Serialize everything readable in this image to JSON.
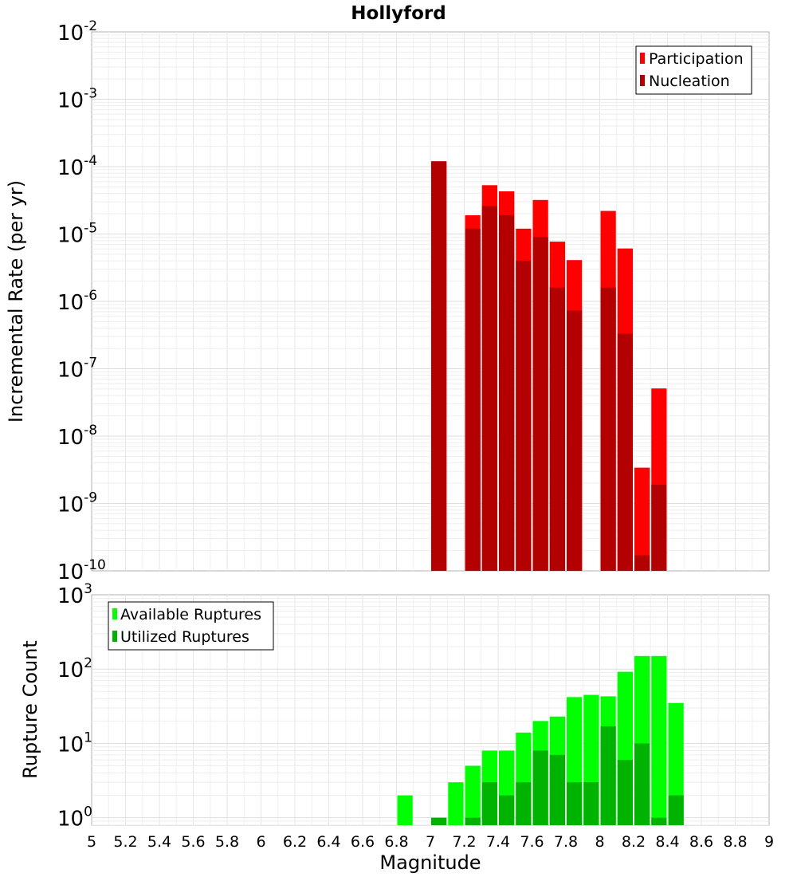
{
  "chart_data": [
    {
      "type": "bar",
      "title": "Hollyford",
      "xlabel": "Magnitude",
      "ylabel": "Incremental Rate (per yr)",
      "yscale": "log",
      "xlim": [
        5,
        9
      ],
      "ylim_exponents": [
        -10,
        -2
      ],
      "ytick_base": "10",
      "ytick_exponents": [
        "-2",
        "-3",
        "-4",
        "-5",
        "-6",
        "-7",
        "-8",
        "-9",
        "-10"
      ],
      "legend_position": "top-right",
      "series": [
        {
          "name": "Participation",
          "color": "#ff0000",
          "points": [
            {
              "x": 7.05,
              "y": 0.00012
            },
            {
              "x": 7.25,
              "y": 1.9e-05
            },
            {
              "x": 7.35,
              "y": 5.3e-05
            },
            {
              "x": 7.45,
              "y": 4.3e-05
            },
            {
              "x": 7.55,
              "y": 1.2e-05
            },
            {
              "x": 7.65,
              "y": 3.2e-05
            },
            {
              "x": 7.75,
              "y": 7.7e-06
            },
            {
              "x": 7.85,
              "y": 4.1e-06
            },
            {
              "x": 8.05,
              "y": 2.2e-05
            },
            {
              "x": 8.15,
              "y": 6.1e-06
            },
            {
              "x": 8.25,
              "y": 3.4e-09
            },
            {
              "x": 8.35,
              "y": 5.1e-08
            }
          ]
        },
        {
          "name": "Nucleation",
          "color": "#b30000",
          "points": [
            {
              "x": 7.05,
              "y": 0.00012
            },
            {
              "x": 7.25,
              "y": 1.2e-05
            },
            {
              "x": 7.35,
              "y": 2.6e-05
            },
            {
              "x": 7.45,
              "y": 1.9e-05
            },
            {
              "x": 7.55,
              "y": 4e-06
            },
            {
              "x": 7.65,
              "y": 9e-06
            },
            {
              "x": 7.75,
              "y": 1.6e-06
            },
            {
              "x": 7.85,
              "y": 7.3e-07
            },
            {
              "x": 8.05,
              "y": 1.6e-06
            },
            {
              "x": 8.15,
              "y": 3.3e-07
            },
            {
              "x": 8.25,
              "y": 1.7e-10
            },
            {
              "x": 8.35,
              "y": 1.9e-09
            }
          ]
        }
      ]
    },
    {
      "type": "bar",
      "xlabel": "Magnitude",
      "ylabel": "Rupture Count",
      "yscale": "log",
      "xlim": [
        5,
        9
      ],
      "ylim_exponents": [
        -0.1,
        3
      ],
      "ytick_base": "10",
      "ytick_exponents": [
        "3",
        "2",
        "1",
        "0"
      ],
      "legend_position": "top-left",
      "xticks": [
        "5",
        "5.2",
        "5.4",
        "5.6",
        "5.8",
        "6",
        "6.2",
        "6.4",
        "6.6",
        "6.8",
        "7",
        "7.2",
        "7.4",
        "7.6",
        "7.8",
        "8",
        "8.2",
        "8.4",
        "8.6",
        "8.8",
        "9"
      ],
      "series": [
        {
          "name": "Available Ruptures",
          "color": "#00ff00",
          "points": [
            {
              "x": 6.85,
              "y": 2
            },
            {
              "x": 7.05,
              "y": 1
            },
            {
              "x": 7.15,
              "y": 3
            },
            {
              "x": 7.25,
              "y": 5
            },
            {
              "x": 7.35,
              "y": 8
            },
            {
              "x": 7.45,
              "y": 8
            },
            {
              "x": 7.55,
              "y": 14
            },
            {
              "x": 7.65,
              "y": 20
            },
            {
              "x": 7.75,
              "y": 23
            },
            {
              "x": 7.85,
              "y": 42
            },
            {
              "x": 7.95,
              "y": 45
            },
            {
              "x": 8.05,
              "y": 43
            },
            {
              "x": 8.15,
              "y": 92
            },
            {
              "x": 8.25,
              "y": 150
            },
            {
              "x": 8.35,
              "y": 150
            },
            {
              "x": 8.45,
              "y": 35
            }
          ]
        },
        {
          "name": "Utilized Ruptures",
          "color": "#00b300",
          "points": [
            {
              "x": 7.05,
              "y": 1
            },
            {
              "x": 7.25,
              "y": 1
            },
            {
              "x": 7.35,
              "y": 3
            },
            {
              "x": 7.45,
              "y": 2
            },
            {
              "x": 7.55,
              "y": 3
            },
            {
              "x": 7.65,
              "y": 8
            },
            {
              "x": 7.75,
              "y": 7
            },
            {
              "x": 7.85,
              "y": 3
            },
            {
              "x": 7.95,
              "y": 3
            },
            {
              "x": 8.05,
              "y": 17
            },
            {
              "x": 8.15,
              "y": 6
            },
            {
              "x": 8.25,
              "y": 10
            },
            {
              "x": 8.35,
              "y": 1
            },
            {
              "x": 8.45,
              "y": 2
            }
          ]
        }
      ]
    }
  ]
}
